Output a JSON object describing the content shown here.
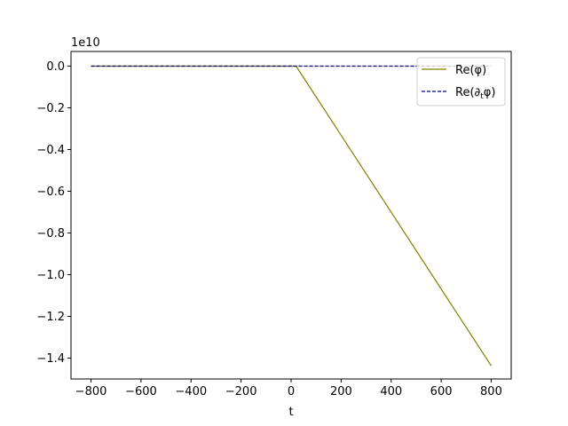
{
  "chart_data": {
    "type": "line",
    "xlabel": "t",
    "ylabel": "",
    "offset_label": "1e10",
    "xlim": [
      -880,
      880
    ],
    "ylim": [
      -1.5,
      0.07
    ],
    "xticks": [
      -800,
      -600,
      -400,
      -200,
      0,
      200,
      400,
      600,
      800
    ],
    "xtick_labels": [
      "−800",
      "−600",
      "−400",
      "−200",
      "0",
      "200",
      "400",
      "600",
      "800"
    ],
    "yticks": [
      0.0,
      -0.2,
      -0.4,
      -0.6,
      -0.8,
      -1.0,
      -1.2,
      -1.4
    ],
    "ytick_labels": [
      "0.0",
      "−0.2",
      "−0.4",
      "−0.6",
      "−0.8",
      "−1.0",
      "−1.2",
      "−1.4"
    ],
    "grid": false,
    "legend_position": "top-right",
    "series": [
      {
        "name": "Re(φ)",
        "legend_main": "Re(φ)",
        "legend_sub": "",
        "legend_tail": "",
        "color": "#808000",
        "dash": "solid",
        "x": [
          -800,
          20,
          800
        ],
        "y": [
          0.0,
          0.0,
          -1.437
        ]
      },
      {
        "name": "Re(∂tφ)",
        "legend_main": "Re(∂",
        "legend_sub": "t",
        "legend_tail": "φ)",
        "color": "#00008b",
        "dash": "dashed",
        "x": [
          -800,
          800
        ],
        "y": [
          0.0,
          0.0
        ]
      }
    ],
    "overlay_series": {
      "color": "#d8ccaa",
      "x": [
        -800,
        800
      ],
      "y": [
        0.0,
        0.0
      ]
    }
  }
}
